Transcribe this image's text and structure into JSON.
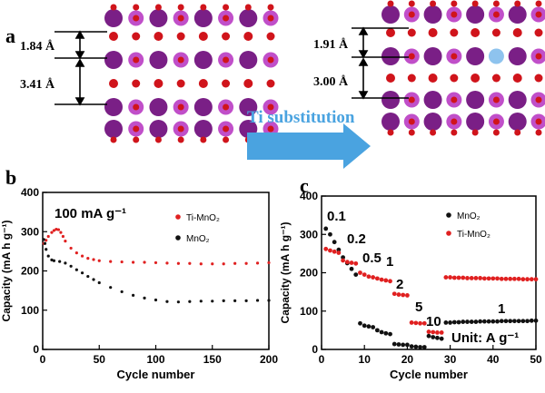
{
  "panel_a": {
    "label": "a",
    "left": {
      "d1": "1.84 Å",
      "d2": "3.41 Å"
    },
    "right": {
      "d1": "1.91 Å",
      "d2": "3.00 Å"
    },
    "arrow_text": "Ti substitution",
    "colors": {
      "mn": "#7a1f86",
      "mn_light": "#c04fc9",
      "o": "#d0141b",
      "ti": "#8ec3ee",
      "arrow": "#4aa3e0"
    }
  },
  "chart_data": [
    {
      "panel": "b",
      "type": "scatter",
      "xlabel": "Cycle number",
      "ylabel": "Capacity (mA h g⁻¹)",
      "xlim": [
        0,
        200
      ],
      "ylim": [
        0,
        400
      ],
      "xticks": [
        0,
        50,
        100,
        150,
        200
      ],
      "yticks": [
        0,
        100,
        200,
        300,
        400
      ],
      "annotation": "100 mA g⁻¹",
      "legend": "upper-right",
      "series": [
        {
          "name": "Ti-MnO₂",
          "color": "#e02020",
          "x": [
            1,
            3,
            5,
            8,
            10,
            12,
            14,
            16,
            18,
            20,
            25,
            30,
            35,
            40,
            45,
            50,
            60,
            70,
            80,
            90,
            100,
            110,
            120,
            130,
            140,
            150,
            160,
            170,
            180,
            190,
            200
          ],
          "y": [
            270,
            278,
            288,
            298,
            303,
            306,
            305,
            298,
            288,
            276,
            258,
            246,
            238,
            232,
            229,
            226,
            224,
            223,
            222,
            222,
            221,
            220,
            219,
            219,
            218,
            218,
            218,
            219,
            219,
            220,
            221
          ]
        },
        {
          "name": "MnO₂",
          "color": "#111111",
          "x": [
            1,
            2,
            3,
            5,
            8,
            10,
            15,
            20,
            25,
            30,
            35,
            40,
            45,
            50,
            60,
            70,
            80,
            90,
            100,
            110,
            120,
            130,
            140,
            150,
            160,
            170,
            180,
            190,
            200
          ],
          "y": [
            280,
            270,
            255,
            238,
            228,
            226,
            224,
            220,
            212,
            203,
            195,
            186,
            178,
            170,
            158,
            147,
            138,
            131,
            126,
            122,
            121,
            122,
            123,
            123,
            124,
            124,
            124,
            125,
            125
          ]
        }
      ]
    },
    {
      "panel": "c",
      "type": "scatter",
      "xlabel": "Cycle number",
      "ylabel": "Capacity (mA h g⁻¹)",
      "xlim": [
        0,
        50
      ],
      "ylim": [
        0,
        400
      ],
      "xticks": [
        0,
        10,
        20,
        30,
        40,
        50
      ],
      "yticks": [
        0,
        100,
        200,
        300,
        400
      ],
      "legend": "upper-right",
      "rate_labels": [
        "0.1",
        "0.2",
        "0.5",
        "1",
        "2",
        "5",
        "10",
        "1"
      ],
      "unit_text": "Unit: A g⁻¹",
      "series": [
        {
          "name": "MnO₂",
          "color": "#111111",
          "x": [
            1,
            2,
            3,
            4,
            5,
            6,
            7,
            8,
            9,
            10,
            11,
            12,
            13,
            14,
            15,
            16,
            17,
            18,
            19,
            20,
            21,
            22,
            23,
            24,
            25,
            26,
            27,
            28,
            29,
            30,
            31,
            32,
            33,
            34,
            35,
            36,
            37,
            38,
            39,
            40,
            41,
            42,
            43,
            44,
            45,
            46,
            47,
            48,
            49,
            50
          ],
          "y": [
            315,
            300,
            280,
            260,
            240,
            225,
            210,
            195,
            68,
            62,
            60,
            58,
            50,
            45,
            42,
            40,
            14,
            13,
            12,
            12,
            8,
            7,
            6,
            6,
            35,
            32,
            30,
            28,
            70,
            70,
            71,
            71,
            72,
            72,
            72,
            72,
            73,
            73,
            73,
            73,
            73,
            74,
            74,
            74,
            74,
            74,
            74,
            74,
            75,
            75
          ]
        },
        {
          "name": "Ti-MnO₂",
          "color": "#e02020",
          "x": [
            1,
            2,
            3,
            4,
            5,
            6,
            7,
            8,
            9,
            10,
            11,
            12,
            13,
            14,
            15,
            16,
            17,
            18,
            19,
            20,
            21,
            22,
            23,
            24,
            25,
            26,
            27,
            28,
            29,
            30,
            31,
            32,
            33,
            34,
            35,
            36,
            37,
            38,
            39,
            40,
            41,
            42,
            43,
            44,
            45,
            46,
            47,
            48,
            49,
            50
          ],
          "y": [
            262,
            258,
            255,
            252,
            232,
            228,
            226,
            224,
            200,
            195,
            190,
            188,
            185,
            182,
            180,
            178,
            145,
            143,
            142,
            141,
            70,
            69,
            68,
            68,
            46,
            45,
            44,
            44,
            188,
            188,
            187,
            187,
            187,
            186,
            186,
            186,
            186,
            185,
            185,
            185,
            185,
            184,
            184,
            184,
            184,
            184,
            183,
            183,
            183,
            183
          ]
        }
      ]
    }
  ],
  "panel_b": {
    "label": "b"
  },
  "panel_c": {
    "label": "c"
  }
}
